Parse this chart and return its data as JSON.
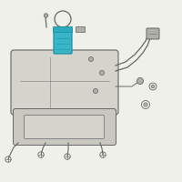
{
  "bg_color": "#f0f0eb",
  "line_color": "#888888",
  "dark_line": "#666666",
  "highlight_color": "#3ab5c8",
  "highlight_dark": "#1a90a5",
  "fig_bg": "#f0f0eb",
  "tank_fill": "#d4d4cc",
  "tank_edge": "#666666",
  "shield_fill": "#c8c8c0",
  "bolt_fill": "#b0b0a8"
}
